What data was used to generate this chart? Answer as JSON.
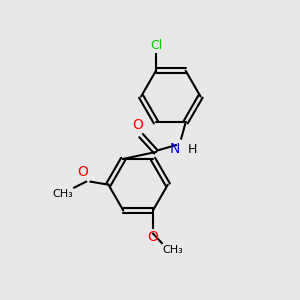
{
  "background_color": "#e8e8e8",
  "bond_color": "#000000",
  "atom_colors": {
    "O": "#ff0000",
    "N": "#0000cc",
    "Cl": "#00cc00",
    "C": "#000000",
    "H": "#000000"
  },
  "figsize": [
    3.0,
    3.0
  ],
  "dpi": 100
}
